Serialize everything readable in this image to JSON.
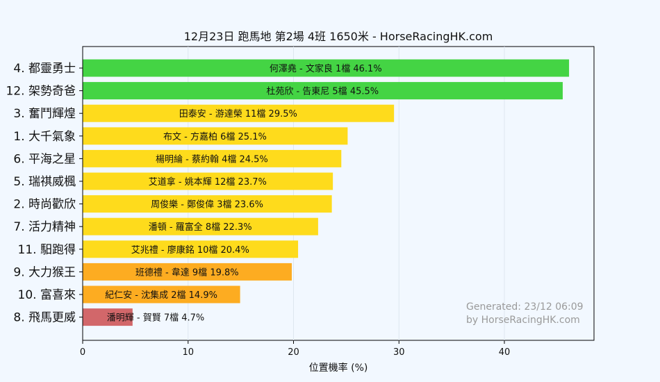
{
  "chart_data": {
    "type": "bar",
    "orientation": "horizontal",
    "title": "12月23日  跑馬地  第2場  4班  1650米 - HorseRacingHK.com",
    "xlabel": "位置機率 (%)",
    "ylabel": "",
    "xlim": [
      0,
      48.5
    ],
    "xticks": [
      "0",
      "10",
      "20",
      "30",
      "40"
    ],
    "grid": true,
    "watermark": [
      "Generated: 23/12 06:09",
      "by HorseRacingHK.com"
    ],
    "bars": [
      {
        "horse": "4. 都靈勇士",
        "label": "何澤堯 - 文家良 1檔  46.1%",
        "value": 46.1,
        "color": "#44d444"
      },
      {
        "horse": "12. 架勢奇爸",
        "label": "杜苑欣 - 告東尼 5檔  45.5%",
        "value": 45.5,
        "color": "#44d444"
      },
      {
        "horse": "3. 奮鬥輝煌",
        "label": "田泰安 - 游達榮 11檔  29.5%",
        "value": 29.5,
        "color": "#fedb1c"
      },
      {
        "horse": "1. 大千氣象",
        "label": "布文 - 方嘉柏 6檔  25.1%",
        "value": 25.1,
        "color": "#fedb1c"
      },
      {
        "horse": "6. 平海之星",
        "label": "楊明綸 - 蔡約翰 4檔  24.5%",
        "value": 24.5,
        "color": "#fedb1c"
      },
      {
        "horse": "5. 瑞祺威楓",
        "label": "艾道拿 - 姚本輝 12檔  23.7%",
        "value": 23.7,
        "color": "#fedb1c"
      },
      {
        "horse": "2. 時尚歡欣",
        "label": "周俊樂 - 鄭俊偉 3檔  23.6%",
        "value": 23.6,
        "color": "#fedb1c"
      },
      {
        "horse": "7. 活力精神",
        "label": "潘頓 - 羅富全 8檔  22.3%",
        "value": 22.3,
        "color": "#fedb1c"
      },
      {
        "horse": "11. 馹跑得",
        "label": "艾兆禮 - 廖康銘 10檔  20.4%",
        "value": 20.4,
        "color": "#fedb1c"
      },
      {
        "horse": "9. 大力猴王",
        "label": "班德禮 - 韋達 9檔  19.8%",
        "value": 19.8,
        "color": "#fdac21"
      },
      {
        "horse": "10. 富喜來",
        "label": "紀仁安 - 沈集成 2檔  14.9%",
        "value": 14.9,
        "color": "#fdac21"
      },
      {
        "horse": "8. 飛馬更威",
        "label": "潘明輝 - 賀賢 7檔  4.7%",
        "value": 4.7,
        "color": "#d2676a"
      }
    ]
  }
}
